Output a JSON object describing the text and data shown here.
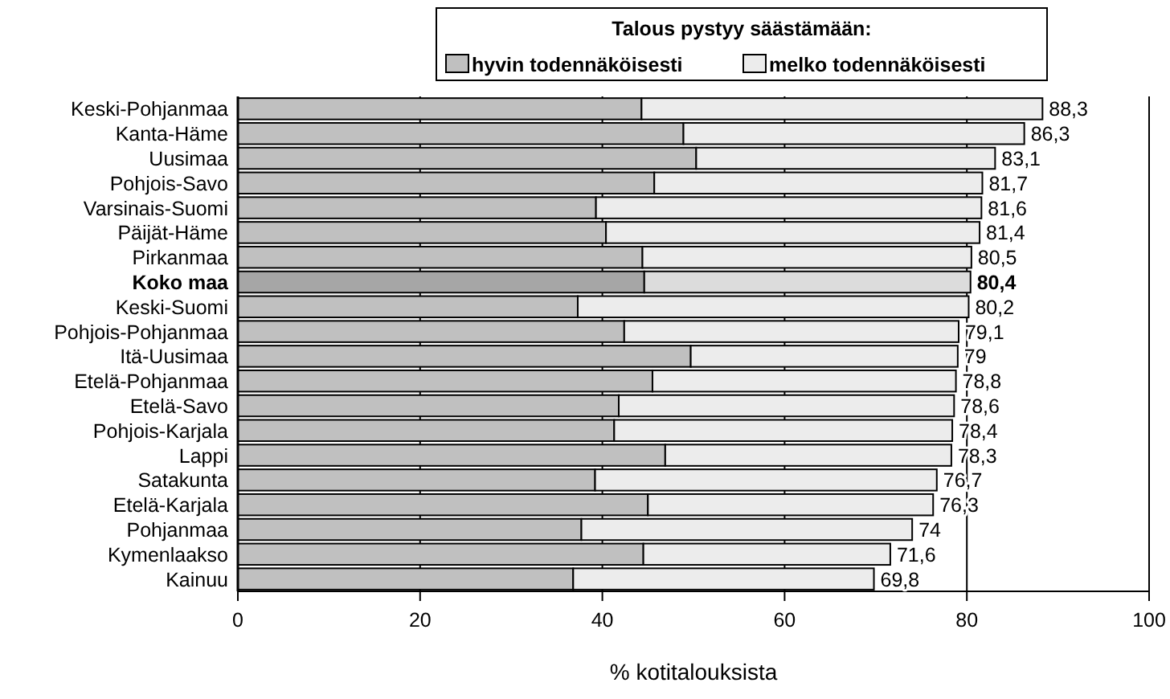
{
  "chart_data": {
    "type": "bar",
    "orientation": "horizontal",
    "stacked": true,
    "categories": [
      "Keski-Pohjanmaa",
      "Kanta-Häme",
      "Uusimaa",
      "Pohjois-Savo",
      "Varsinais-Suomi",
      "Päijät-Häme",
      "Pirkanmaa",
      "Koko maa",
      "Keski-Suomi",
      "Pohjois-Pohjanmaa",
      "Itä-Uusimaa",
      "Etelä-Pohjanmaa",
      "Etelä-Savo",
      "Pohjois-Karjala",
      "Lappi",
      "Satakunta",
      "Etelä-Karjala",
      "Pohjanmaa",
      "Kymenlaakso",
      "Kainuu"
    ],
    "series": [
      {
        "name": "hyvin todennäköisesti",
        "color": "#c0c0c0",
        "colors": [
          "#c0c0c0",
          "#c0c0c0",
          "#c0c0c0",
          "#c0c0c0",
          "#c0c0c0",
          "#c0c0c0",
          "#c0c0c0",
          "#a6a6a6",
          "#c0c0c0",
          "#c0c0c0",
          "#c0c0c0",
          "#c0c0c0",
          "#c0c0c0",
          "#c0c0c0",
          "#c0c0c0",
          "#c0c0c0",
          "#c0c0c0",
          "#c0c0c0",
          "#c0c0c0",
          "#c0c0c0"
        ],
        "values": [
          44.3,
          48.9,
          50.3,
          45.7,
          39.3,
          40.4,
          44.4,
          44.6,
          37.3,
          42.4,
          49.7,
          45.5,
          41.8,
          41.3,
          46.9,
          39.2,
          45.0,
          37.7,
          44.5,
          36.8
        ]
      },
      {
        "name": "melko todennäköisesti",
        "color": "#ececec",
        "colors": [
          "#ececec",
          "#ececec",
          "#ececec",
          "#ececec",
          "#ececec",
          "#ececec",
          "#ececec",
          "#dcdcdc",
          "#ececec",
          "#ececec",
          "#ececec",
          "#ececec",
          "#ececec",
          "#ececec",
          "#ececec",
          "#ececec",
          "#ececec",
          "#ececec",
          "#ececec",
          "#ececec"
        ],
        "values": [
          44.0,
          37.4,
          32.8,
          36.0,
          42.3,
          41.0,
          36.1,
          35.8,
          42.9,
          36.7,
          29.3,
          33.3,
          36.8,
          37.1,
          31.4,
          37.5,
          31.3,
          36.3,
          27.1,
          33.0
        ]
      }
    ],
    "totals": [
      "88,3",
      "86,3",
      "83,1",
      "81,7",
      "81,6",
      "81,4",
      "80,5",
      "80,4",
      "80,2",
      "79,1",
      "79",
      "78,8",
      "78,6",
      "78,4",
      "78,3",
      "76,7",
      "76,3",
      "74",
      "71,6",
      "69,8"
    ],
    "xlim": [
      0,
      100
    ],
    "xticks": [
      0,
      20,
      40,
      60,
      80,
      100
    ],
    "xlabel": "% kotitalouksista",
    "legend_title": "Talous pystyy säästämään:",
    "legend": "top",
    "grid": "x"
  }
}
